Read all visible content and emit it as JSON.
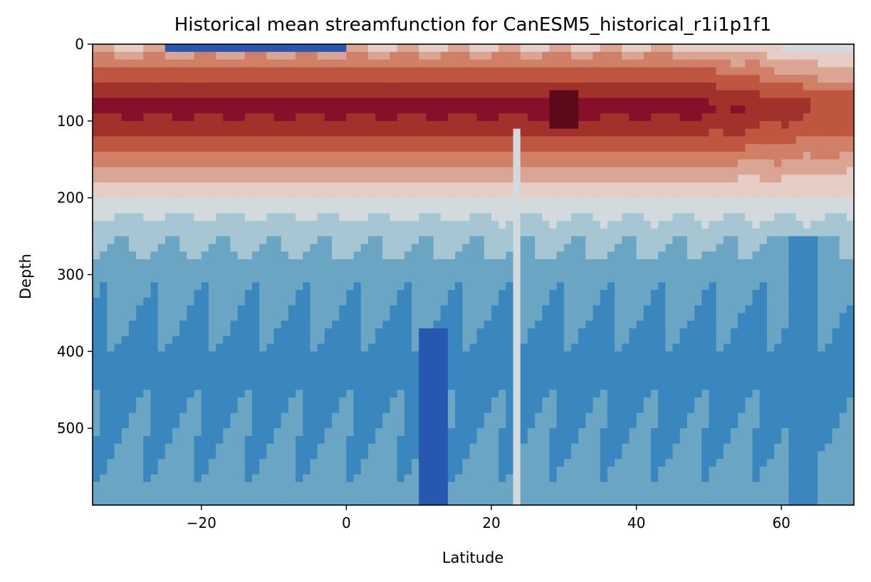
{
  "chart_data": {
    "type": "heatmap",
    "subtype": "filled-contour",
    "title": "Historical mean streamfunction for CanESM5_historical_r1i1p1f1",
    "xlabel": "Latitude",
    "ylabel": "Depth",
    "xlim": [
      -35,
      70
    ],
    "ylim": [
      600,
      0
    ],
    "y_inverted": true,
    "xticks": [
      -20,
      0,
      20,
      40,
      60
    ],
    "xtick_labels": [
      "−20",
      "0",
      "20",
      "40",
      "60"
    ],
    "yticks": [
      0,
      100,
      200,
      300,
      400,
      500
    ],
    "ytick_labels": [
      "0",
      "100",
      "200",
      "300",
      "400",
      "500"
    ],
    "grid": false,
    "colorbar": false,
    "colormap": "RdBu_r",
    "levels": [
      {
        "value": -6,
        "color": "#1a3e8c"
      },
      {
        "value": -5,
        "color": "#2757b0"
      },
      {
        "value": -4,
        "color": "#3a87c0"
      },
      {
        "value": -3,
        "color": "#6aa5c4"
      },
      {
        "value": -2,
        "color": "#a6c6d3"
      },
      {
        "value": -1,
        "color": "#d3dadd"
      },
      {
        "value": 1,
        "color": "#e6cdc5"
      },
      {
        "value": 2,
        "color": "#dba594"
      },
      {
        "value": 3,
        "color": "#cf8066"
      },
      {
        "value": 4,
        "color": "#bf5640"
      },
      {
        "value": 5,
        "color": "#a2302b"
      },
      {
        "value": 6,
        "color": "#870f29"
      },
      {
        "value": 7,
        "color": "#5c0a1a"
      }
    ],
    "depth_profile": [
      {
        "depth": 0,
        "value": 1
      },
      {
        "depth": 20,
        "value": 3
      },
      {
        "depth": 40,
        "value": 4
      },
      {
        "depth": 60,
        "value": 5
      },
      {
        "depth": 80,
        "value": 6
      },
      {
        "depth": 110,
        "value": 5
      },
      {
        "depth": 130,
        "value": 4
      },
      {
        "depth": 150,
        "value": 3
      },
      {
        "depth": 170,
        "value": 2
      },
      {
        "depth": 190,
        "value": 1
      },
      {
        "depth": 210,
        "value": -1
      },
      {
        "depth": 240,
        "value": -2
      },
      {
        "depth": 290,
        "value": -3
      },
      {
        "depth": 420,
        "value": -4
      },
      {
        "depth": 600,
        "value": -3
      }
    ],
    "features": [
      {
        "name": "surface-negative-cell",
        "lat_range": [
          -25,
          0
        ],
        "depth_range": [
          0,
          12
        ],
        "value": -5
      },
      {
        "name": "deep-minimum",
        "lat_range": [
          10,
          14
        ],
        "depth_range": [
          370,
          600
        ],
        "value": -5
      },
      {
        "name": "subtropical-maximum",
        "lat_range": [
          28,
          32
        ],
        "depth_range": [
          60,
          110
        ],
        "value": 7
      },
      {
        "name": "high-latitude-column",
        "lat_range": [
          61,
          65
        ],
        "depth_range": [
          250,
          600
        ],
        "value": -4
      },
      {
        "name": "narrow-column-23N",
        "lat_range": [
          22.7,
          24
        ],
        "depth_range": [
          110,
          600
        ],
        "value": -1
      }
    ]
  }
}
